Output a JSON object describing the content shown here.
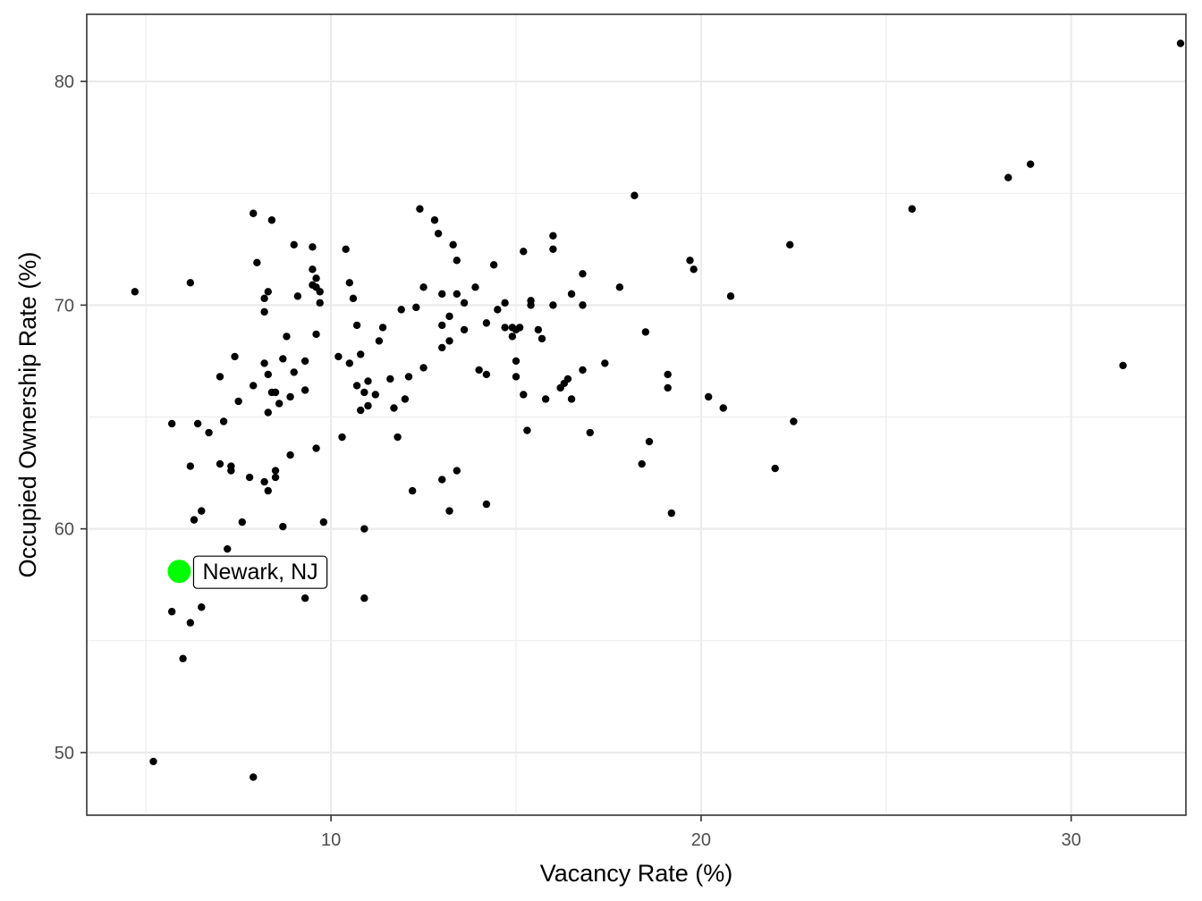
{
  "chart_data": {
    "type": "scatter",
    "title": "",
    "xlabel": "Vacancy Rate (%)",
    "ylabel": "Occupied Ownership Rate (%)",
    "xlim": [
      3.4,
      33.1
    ],
    "ylim": [
      47.2,
      83.0
    ],
    "x_ticks": [
      10,
      20,
      30
    ],
    "y_ticks": [
      50,
      60,
      70,
      80
    ],
    "x_minor": [
      5,
      15,
      25
    ],
    "y_minor": [
      55,
      65,
      75
    ],
    "grid": true,
    "colors": {
      "point": "#000000",
      "highlight": "#00ff00",
      "grid": "#ebebeb",
      "panel_border": "#333333"
    },
    "highlight": {
      "label": "Newark, NJ",
      "x": 5.9,
      "y": 58.1
    },
    "points": [
      [
        4.7,
        70.6
      ],
      [
        5.2,
        49.6
      ],
      [
        5.7,
        64.7
      ],
      [
        5.7,
        56.3
      ],
      [
        6.0,
        54.2
      ],
      [
        6.2,
        71.0
      ],
      [
        6.2,
        62.8
      ],
      [
        6.2,
        55.8
      ],
      [
        6.3,
        60.4
      ],
      [
        6.4,
        64.7
      ],
      [
        6.5,
        60.8
      ],
      [
        6.5,
        56.5
      ],
      [
        6.7,
        64.3
      ],
      [
        7.0,
        62.9
      ],
      [
        7.0,
        66.8
      ],
      [
        7.1,
        64.8
      ],
      [
        7.2,
        59.1
      ],
      [
        7.3,
        62.8
      ],
      [
        7.3,
        62.6
      ],
      [
        7.4,
        67.7
      ],
      [
        7.5,
        65.7
      ],
      [
        7.6,
        60.3
      ],
      [
        7.8,
        62.3
      ],
      [
        7.9,
        74.1
      ],
      [
        7.9,
        66.4
      ],
      [
        7.9,
        48.9
      ],
      [
        8.0,
        71.9
      ],
      [
        8.2,
        70.3
      ],
      [
        8.2,
        69.7
      ],
      [
        8.2,
        67.4
      ],
      [
        8.2,
        62.1
      ],
      [
        8.3,
        70.6
      ],
      [
        8.3,
        66.9
      ],
      [
        8.3,
        65.2
      ],
      [
        8.3,
        61.7
      ],
      [
        8.4,
        73.8
      ],
      [
        8.4,
        66.1
      ],
      [
        8.5,
        66.1
      ],
      [
        8.5,
        62.6
      ],
      [
        8.5,
        62.3
      ],
      [
        8.6,
        65.6
      ],
      [
        8.7,
        67.6
      ],
      [
        8.7,
        60.1
      ],
      [
        8.8,
        68.6
      ],
      [
        8.9,
        65.9
      ],
      [
        8.9,
        63.3
      ],
      [
        9.0,
        72.7
      ],
      [
        9.0,
        67.0
      ],
      [
        9.1,
        70.4
      ],
      [
        9.3,
        67.5
      ],
      [
        9.3,
        66.2
      ],
      [
        9.3,
        56.9
      ],
      [
        9.5,
        72.6
      ],
      [
        9.5,
        71.6
      ],
      [
        9.5,
        70.9
      ],
      [
        9.6,
        71.2
      ],
      [
        9.6,
        70.8
      ],
      [
        9.6,
        68.7
      ],
      [
        9.6,
        63.6
      ],
      [
        9.7,
        70.6
      ],
      [
        9.7,
        70.1
      ],
      [
        9.8,
        60.3
      ],
      [
        10.2,
        67.7
      ],
      [
        10.3,
        64.1
      ],
      [
        10.4,
        72.5
      ],
      [
        10.5,
        71.0
      ],
      [
        10.5,
        67.4
      ],
      [
        10.6,
        70.3
      ],
      [
        10.7,
        69.1
      ],
      [
        10.7,
        66.4
      ],
      [
        10.8,
        67.8
      ],
      [
        10.8,
        65.3
      ],
      [
        10.9,
        66.1
      ],
      [
        10.9,
        60.0
      ],
      [
        10.9,
        56.9
      ],
      [
        11.0,
        66.6
      ],
      [
        11.0,
        65.5
      ],
      [
        11.2,
        66.0
      ],
      [
        11.3,
        68.4
      ],
      [
        11.4,
        69.0
      ],
      [
        11.6,
        66.7
      ],
      [
        11.7,
        65.4
      ],
      [
        11.8,
        64.1
      ],
      [
        11.9,
        69.8
      ],
      [
        12.0,
        65.8
      ],
      [
        12.1,
        66.8
      ],
      [
        12.2,
        61.7
      ],
      [
        12.3,
        69.9
      ],
      [
        12.4,
        74.3
      ],
      [
        12.5,
        70.8
      ],
      [
        12.5,
        67.2
      ],
      [
        12.8,
        73.8
      ],
      [
        12.9,
        73.2
      ],
      [
        13.0,
        70.5
      ],
      [
        13.0,
        69.1
      ],
      [
        13.0,
        68.1
      ],
      [
        13.0,
        62.2
      ],
      [
        13.2,
        69.5
      ],
      [
        13.2,
        68.4
      ],
      [
        13.2,
        60.8
      ],
      [
        13.3,
        72.7
      ],
      [
        13.4,
        72.0
      ],
      [
        13.4,
        70.5
      ],
      [
        13.4,
        62.6
      ],
      [
        13.6,
        70.1
      ],
      [
        13.6,
        68.9
      ],
      [
        13.9,
        70.8
      ],
      [
        14.0,
        67.1
      ],
      [
        14.2,
        69.2
      ],
      [
        14.2,
        66.9
      ],
      [
        14.2,
        61.1
      ],
      [
        14.4,
        71.8
      ],
      [
        14.5,
        69.8
      ],
      [
        14.7,
        70.1
      ],
      [
        14.7,
        69.0
      ],
      [
        14.9,
        69.0
      ],
      [
        14.9,
        68.6
      ],
      [
        15.0,
        68.9
      ],
      [
        15.0,
        66.8
      ],
      [
        15.0,
        67.5
      ],
      [
        15.1,
        69.0
      ],
      [
        15.2,
        72.4
      ],
      [
        15.2,
        66.0
      ],
      [
        15.3,
        64.4
      ],
      [
        15.4,
        70.0
      ],
      [
        15.4,
        70.2
      ],
      [
        15.6,
        68.9
      ],
      [
        15.7,
        68.5
      ],
      [
        15.8,
        65.8
      ],
      [
        16.0,
        73.1
      ],
      [
        16.0,
        72.5
      ],
      [
        16.0,
        70.0
      ],
      [
        16.2,
        66.3
      ],
      [
        16.3,
        66.5
      ],
      [
        16.4,
        66.7
      ],
      [
        16.5,
        70.5
      ],
      [
        16.5,
        65.8
      ],
      [
        16.8,
        71.4
      ],
      [
        16.8,
        70.0
      ],
      [
        16.8,
        67.1
      ],
      [
        17.0,
        64.3
      ],
      [
        17.4,
        67.4
      ],
      [
        17.8,
        70.8
      ],
      [
        18.2,
        74.9
      ],
      [
        18.5,
        68.8
      ],
      [
        18.4,
        62.9
      ],
      [
        18.6,
        63.9
      ],
      [
        19.1,
        66.9
      ],
      [
        19.1,
        66.3
      ],
      [
        19.2,
        60.7
      ],
      [
        19.7,
        72.0
      ],
      [
        19.8,
        71.6
      ],
      [
        20.2,
        65.9
      ],
      [
        20.6,
        65.4
      ],
      [
        20.8,
        70.4
      ],
      [
        22.0,
        62.7
      ],
      [
        22.4,
        72.7
      ],
      [
        22.5,
        64.8
      ],
      [
        25.7,
        74.3
      ],
      [
        28.3,
        75.7
      ],
      [
        28.9,
        76.3
      ],
      [
        31.4,
        67.3
      ],
      [
        33.9,
        81.7
      ]
    ]
  }
}
